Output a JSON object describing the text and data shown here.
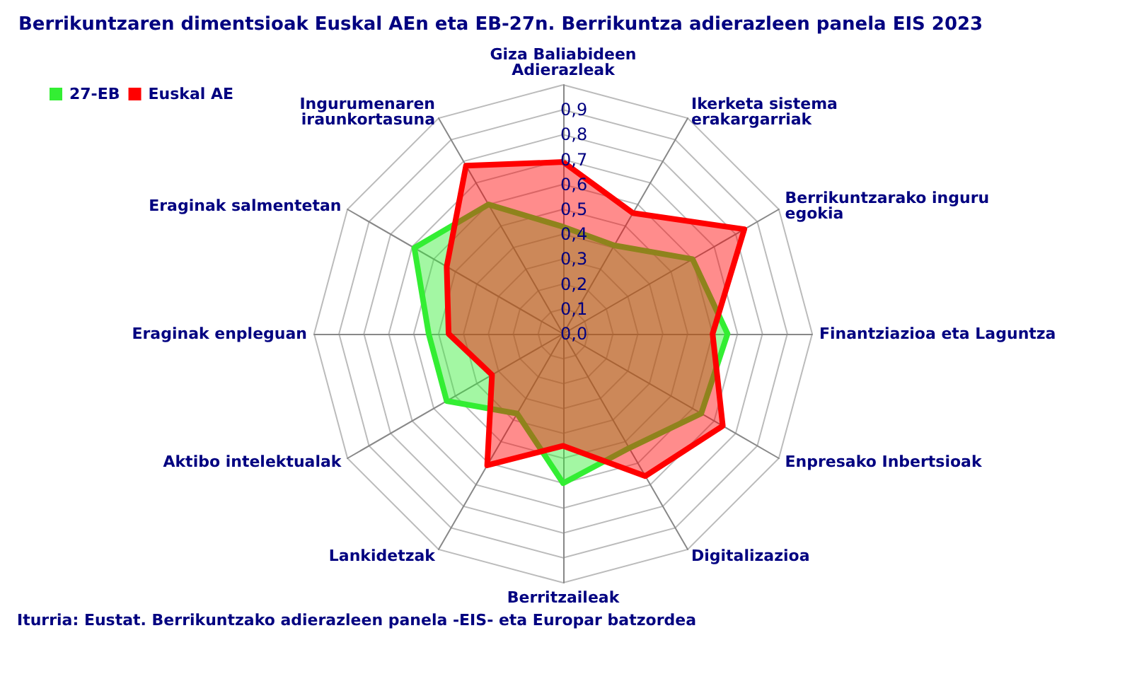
{
  "chart_data": {
    "type": "radar",
    "title": "Berrikuntzaren dimentsioak Euskal AEn eta EB-27n. Berrikuntza adierazleen panela EIS 2023",
    "categories": [
      "Giza Baliabideen\nAdierazleak",
      "Ikerketa sistema\nerakargarriak",
      "Berrikuntzarako inguru\negokia",
      "Finantziazioa eta Laguntza",
      "Enpresako Inbertsioak",
      "Digitalizazioa",
      "Berritzaileak",
      "Lankidetzak",
      "Aktibo intelektualak",
      "Eraginak enpleguan",
      "Eraginak salmentetan",
      "Ingurumenaren\niraunkortasuna"
    ],
    "series": [
      {
        "name": "27-EB",
        "color": "#33ee33",
        "values": [
          0.43,
          0.41,
          0.6,
          0.66,
          0.64,
          0.53,
          0.6,
          0.37,
          0.54,
          0.54,
          0.69,
          0.6
        ]
      },
      {
        "name": "Euskal AE",
        "color": "#ff0000",
        "values": [
          0.69,
          0.56,
          0.84,
          0.6,
          0.74,
          0.66,
          0.45,
          0.61,
          0.33,
          0.46,
          0.54,
          0.78
        ]
      }
    ],
    "ylim": [
      0,
      1
    ],
    "yticks": [
      {
        "value": 0,
        "label": "0,0"
      },
      {
        "value": 0.1,
        "label": "0,1"
      },
      {
        "value": 0.2,
        "label": "0,2"
      },
      {
        "value": 0.3,
        "label": "0,3"
      },
      {
        "value": 0.4,
        "label": "0,4"
      },
      {
        "value": 0.5,
        "label": "0,5"
      },
      {
        "value": 0.6,
        "label": "0,6"
      },
      {
        "value": 0.7,
        "label": "0,7"
      },
      {
        "value": 0.8,
        "label": "0,8"
      },
      {
        "value": 0.9,
        "label": "0,9"
      }
    ],
    "grid": true,
    "legend": "top left",
    "annotations": [
      "Iturria: Eustat. Berrikuntzako adierazleen panela -EIS- eta Europar batzordea"
    ]
  }
}
